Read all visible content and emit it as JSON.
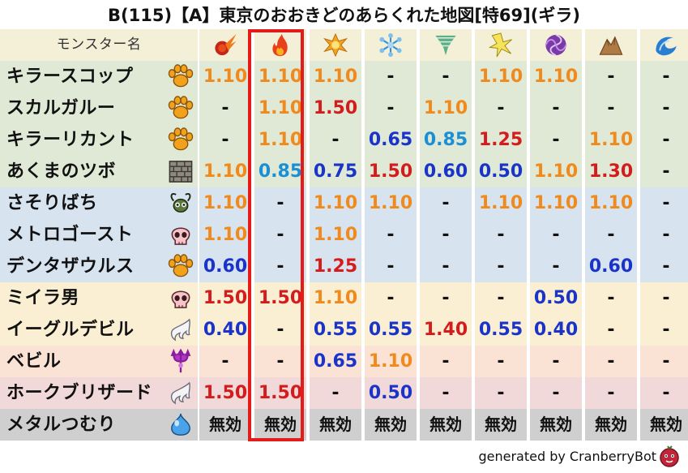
{
  "title": "B(115)【A】東京のおおきどのあらくれた地図[特69](ギラ)",
  "header": {
    "name_label": "モンスター名",
    "elements": [
      {
        "icon": "fire-meteor-icon"
      },
      {
        "icon": "flame-icon"
      },
      {
        "icon": "explosion-icon"
      },
      {
        "icon": "ice-snowflake-icon"
      },
      {
        "icon": "wind-tornado-icon"
      },
      {
        "icon": "lightning-burst-icon"
      },
      {
        "icon": "dark-vortex-icon"
      },
      {
        "icon": "earth-rock-icon"
      },
      {
        "icon": "water-wave-icon"
      }
    ]
  },
  "colors": {
    "row_green": "#dfe9d6",
    "row_blue": "#d7e3ef",
    "row_yellow": "#fbefd3",
    "row_peach": "#fae3d4",
    "row_pink": "#f2d9d9",
    "row_gray": "#cfcfcf",
    "header": "#f4f0d8",
    "v_110": "#f08a1c",
    "v_150": "#d41c1c",
    "v_weak": "#1a33c9",
    "v_085": "#1a8fd6",
    "v_dash": "#111111",
    "highlight": "#e31b1b"
  },
  "rows": [
    {
      "name": "キラースコップ",
      "icon": "paw-icon",
      "bg": "row_green",
      "values": [
        "1.10",
        "1.10",
        "1.10",
        "-",
        "-",
        "1.10",
        "1.10",
        "-",
        "-"
      ]
    },
    {
      "name": "スカルガルー",
      "icon": "paw-icon",
      "bg": "row_green",
      "values": [
        "-",
        "1.10",
        "1.50",
        "-",
        "1.10",
        "-",
        "-",
        "-",
        "-"
      ]
    },
    {
      "name": "キラーリカント",
      "icon": "paw-icon",
      "bg": "row_green",
      "values": [
        "-",
        "1.10",
        "-",
        "0.65",
        "0.85",
        "1.25",
        "-",
        "1.10",
        "-"
      ]
    },
    {
      "name": "あくまのツボ",
      "icon": "brick-icon",
      "bg": "row_green",
      "values": [
        "1.10",
        "0.85",
        "0.75",
        "1.50",
        "0.60",
        "0.50",
        "1.10",
        "1.30",
        "-"
      ]
    },
    {
      "name": "さそりばち",
      "icon": "insect-icon",
      "bg": "row_blue",
      "values": [
        "1.10",
        "-",
        "1.10",
        "1.10",
        "-",
        "1.10",
        "1.10",
        "1.10",
        "-"
      ]
    },
    {
      "name": "メトロゴースト",
      "icon": "skull-icon",
      "bg": "row_blue",
      "values": [
        "1.10",
        "-",
        "1.10",
        "-",
        "-",
        "-",
        "-",
        "-",
        "-"
      ]
    },
    {
      "name": "デンタザウルス",
      "icon": "paw-icon",
      "bg": "row_blue",
      "values": [
        "0.60",
        "-",
        "1.25",
        "-",
        "-",
        "-",
        "-",
        "0.60",
        "-"
      ]
    },
    {
      "name": "ミイラ男",
      "icon": "skull-icon",
      "bg": "row_yellow",
      "values": [
        "1.50",
        "1.50",
        "1.10",
        "-",
        "-",
        "-",
        "0.50",
        "-",
        "-"
      ]
    },
    {
      "name": "イーグルデビル",
      "icon": "wing-icon",
      "bg": "row_yellow",
      "values": [
        "0.40",
        "-",
        "0.55",
        "0.55",
        "1.40",
        "0.55",
        "0.40",
        "-",
        "-"
      ]
    },
    {
      "name": "ベビル",
      "icon": "trident-icon",
      "bg": "row_peach",
      "values": [
        "-",
        "-",
        "0.65",
        "1.10",
        "-",
        "-",
        "-",
        "-",
        "-"
      ]
    },
    {
      "name": "ホークブリザード",
      "icon": "wing-icon",
      "bg": "row_pink",
      "values": [
        "1.50",
        "1.50",
        "-",
        "0.50",
        "-",
        "-",
        "-",
        "-",
        "-"
      ]
    },
    {
      "name": "メタルつむり",
      "icon": "slime-icon",
      "bg": "row_gray",
      "values": [
        "無効",
        "無効",
        "無効",
        "無効",
        "無効",
        "無効",
        "無効",
        "無効",
        "無効"
      ]
    }
  ],
  "footer": {
    "text": "generated by CranberryBot",
    "icon": "cranberry-bot-icon"
  }
}
